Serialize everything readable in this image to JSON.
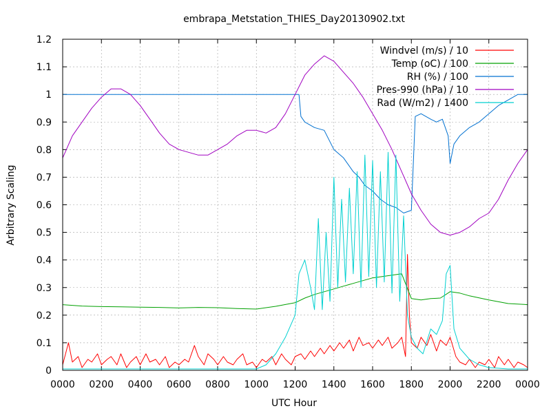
{
  "chart_data": {
    "type": "line",
    "title": "embrapa_Metstation_THIES_Day20130902.txt",
    "xlabel": "UTC Hour",
    "ylabel": "Arbitrary Scaling",
    "xlim": [
      0,
      24
    ],
    "ylim": [
      0,
      1.2
    ],
    "grid": true,
    "legend_position": "top-right",
    "x_tick_values": [
      0,
      2,
      4,
      6,
      8,
      10,
      12,
      14,
      16,
      18,
      20,
      22,
      24
    ],
    "x_tick_labels": [
      "0000",
      "0200",
      "0400",
      "0600",
      "0800",
      "1000",
      "1200",
      "1400",
      "1600",
      "1800",
      "2000",
      "2200",
      "0000"
    ],
    "y_tick_values": [
      0,
      0.1,
      0.2,
      0.3,
      0.4,
      0.5,
      0.6,
      0.7,
      0.8,
      0.9,
      1.0,
      1.1,
      1.2
    ],
    "y_tick_labels": [
      "0",
      "0.1",
      "0.2",
      "0.3",
      "0.4",
      "0.5",
      "0.6",
      "0.7",
      "0.8",
      "0.9",
      "1",
      "1.1",
      "1.2"
    ],
    "series": [
      {
        "name": "Windvel (m/s) / 10",
        "color": "#ff0000",
        "x": [
          0,
          0.3,
          0.5,
          0.8,
          1.0,
          1.3,
          1.5,
          1.8,
          2.0,
          2.3,
          2.5,
          2.8,
          3.0,
          3.3,
          3.5,
          3.8,
          4.0,
          4.3,
          4.5,
          4.8,
          5.0,
          5.3,
          5.5,
          5.8,
          6.0,
          6.3,
          6.5,
          6.8,
          7.0,
          7.3,
          7.5,
          7.8,
          8.0,
          8.3,
          8.5,
          8.8,
          9.0,
          9.3,
          9.5,
          9.8,
          10.0,
          10.3,
          10.5,
          10.8,
          11.0,
          11.3,
          11.5,
          11.8,
          12.0,
          12.3,
          12.5,
          12.8,
          13.0,
          13.3,
          13.5,
          13.8,
          14.0,
          14.3,
          14.5,
          14.8,
          15.0,
          15.3,
          15.5,
          15.8,
          16.0,
          16.3,
          16.5,
          16.8,
          17.0,
          17.3,
          17.5,
          17.7,
          17.8,
          17.9,
          18.0,
          18.3,
          18.5,
          18.8,
          19.0,
          19.3,
          19.5,
          19.8,
          20.0,
          20.3,
          20.5,
          20.8,
          21.0,
          21.3,
          21.5,
          21.8,
          22.0,
          22.3,
          22.5,
          22.8,
          23.0,
          23.3,
          23.5,
          23.8,
          24.0
        ],
        "y": [
          0.02,
          0.1,
          0.03,
          0.05,
          0.01,
          0.04,
          0.03,
          0.06,
          0.02,
          0.04,
          0.05,
          0.02,
          0.06,
          0.01,
          0.03,
          0.05,
          0.02,
          0.06,
          0.03,
          0.04,
          0.02,
          0.05,
          0.01,
          0.03,
          0.02,
          0.04,
          0.03,
          0.09,
          0.05,
          0.02,
          0.06,
          0.04,
          0.02,
          0.05,
          0.03,
          0.02,
          0.04,
          0.06,
          0.02,
          0.03,
          0.01,
          0.04,
          0.03,
          0.05,
          0.02,
          0.06,
          0.04,
          0.02,
          0.05,
          0.06,
          0.04,
          0.07,
          0.05,
          0.08,
          0.06,
          0.09,
          0.07,
          0.1,
          0.08,
          0.11,
          0.07,
          0.12,
          0.09,
          0.1,
          0.08,
          0.11,
          0.09,
          0.12,
          0.08,
          0.1,
          0.12,
          0.05,
          0.42,
          0.2,
          0.1,
          0.08,
          0.12,
          0.09,
          0.13,
          0.07,
          0.11,
          0.09,
          0.12,
          0.05,
          0.03,
          0.02,
          0.04,
          0.01,
          0.03,
          0.02,
          0.04,
          0.01,
          0.05,
          0.02,
          0.04,
          0.01,
          0.03,
          0.02,
          0.01
        ]
      },
      {
        "name": "Temp (oC) / 100",
        "color": "#00a000",
        "x": [
          0,
          1,
          2,
          3,
          4,
          5,
          6,
          7,
          8,
          9,
          10,
          11,
          12,
          12.5,
          13,
          13.5,
          14,
          14.5,
          15,
          15.5,
          16,
          16.5,
          17,
          17.5,
          18,
          18.5,
          19,
          19.5,
          20,
          20.5,
          21,
          22,
          23,
          24
        ],
        "y": [
          0.238,
          0.233,
          0.231,
          0.23,
          0.229,
          0.228,
          0.226,
          0.228,
          0.227,
          0.224,
          0.222,
          0.232,
          0.245,
          0.262,
          0.275,
          0.285,
          0.295,
          0.305,
          0.315,
          0.325,
          0.335,
          0.34,
          0.345,
          0.35,
          0.26,
          0.255,
          0.26,
          0.262,
          0.285,
          0.28,
          0.27,
          0.255,
          0.242,
          0.238
        ]
      },
      {
        "name": "RH (%) / 100",
        "color": "#0070d0",
        "x": [
          0,
          4,
          8,
          11,
          12.2,
          12.3,
          12.5,
          13,
          13.5,
          14,
          14.5,
          15,
          15.3,
          15.6,
          16,
          16.4,
          16.8,
          17.2,
          17.6,
          18,
          18.2,
          18.5,
          19,
          19.3,
          19.6,
          19.9,
          20.0,
          20.2,
          20.5,
          21,
          21.5,
          22,
          22.5,
          23,
          23.5,
          24
        ],
        "y": [
          1.0,
          1.0,
          1.0,
          1.0,
          1.0,
          0.92,
          0.9,
          0.88,
          0.87,
          0.8,
          0.77,
          0.72,
          0.7,
          0.67,
          0.65,
          0.62,
          0.6,
          0.59,
          0.57,
          0.58,
          0.92,
          0.93,
          0.91,
          0.9,
          0.91,
          0.85,
          0.75,
          0.82,
          0.85,
          0.88,
          0.9,
          0.93,
          0.96,
          0.98,
          1.0,
          1.0
        ]
      },
      {
        "name": "Pres-990 (hPa) / 10",
        "color": "#a000c0",
        "x": [
          0,
          0.5,
          1,
          1.5,
          2,
          2.5,
          3,
          3.5,
          4,
          4.5,
          5,
          5.5,
          6,
          6.5,
          7,
          7.5,
          8,
          8.5,
          9,
          9.5,
          10,
          10.5,
          11,
          11.5,
          12,
          12.5,
          13,
          13.5,
          14,
          14.5,
          15,
          15.5,
          16,
          16.5,
          17,
          17.5,
          18,
          18.5,
          19,
          19.5,
          20,
          20.5,
          21,
          21.5,
          22,
          22.5,
          23,
          23.5,
          24
        ],
        "y": [
          0.77,
          0.85,
          0.9,
          0.95,
          0.99,
          1.02,
          1.02,
          1.0,
          0.96,
          0.91,
          0.86,
          0.82,
          0.8,
          0.79,
          0.78,
          0.78,
          0.8,
          0.82,
          0.85,
          0.87,
          0.87,
          0.86,
          0.88,
          0.93,
          1.0,
          1.07,
          1.11,
          1.14,
          1.12,
          1.08,
          1.04,
          0.99,
          0.93,
          0.87,
          0.8,
          0.72,
          0.64,
          0.58,
          0.53,
          0.5,
          0.49,
          0.5,
          0.52,
          0.55,
          0.57,
          0.62,
          0.69,
          0.75,
          0.8
        ]
      },
      {
        "name": "Rad (W/m2) / 1400",
        "color": "#00d0d0",
        "x": [
          0,
          2,
          4,
          6,
          8,
          10,
          10.5,
          11,
          11.5,
          12,
          12.2,
          12.5,
          12.8,
          13.0,
          13.2,
          13.4,
          13.6,
          13.8,
          14.0,
          14.2,
          14.4,
          14.6,
          14.8,
          15.0,
          15.2,
          15.4,
          15.6,
          15.8,
          16.0,
          16.2,
          16.4,
          16.6,
          16.8,
          17.0,
          17.2,
          17.4,
          17.6,
          17.8,
          18.0,
          18.3,
          18.6,
          19.0,
          19.3,
          19.6,
          19.8,
          20.0,
          20.2,
          20.5,
          21.0,
          21.5,
          22,
          23,
          24
        ],
        "y": [
          0.005,
          0.005,
          0.005,
          0.005,
          0.005,
          0.005,
          0.02,
          0.06,
          0.12,
          0.2,
          0.35,
          0.4,
          0.3,
          0.22,
          0.55,
          0.22,
          0.5,
          0.25,
          0.7,
          0.3,
          0.62,
          0.32,
          0.66,
          0.35,
          0.72,
          0.3,
          0.78,
          0.34,
          0.76,
          0.3,
          0.72,
          0.32,
          0.79,
          0.28,
          0.78,
          0.25,
          0.56,
          0.2,
          0.12,
          0.08,
          0.06,
          0.15,
          0.13,
          0.18,
          0.35,
          0.38,
          0.15,
          0.08,
          0.04,
          0.02,
          0.01,
          0.005,
          0.005
        ]
      }
    ]
  }
}
